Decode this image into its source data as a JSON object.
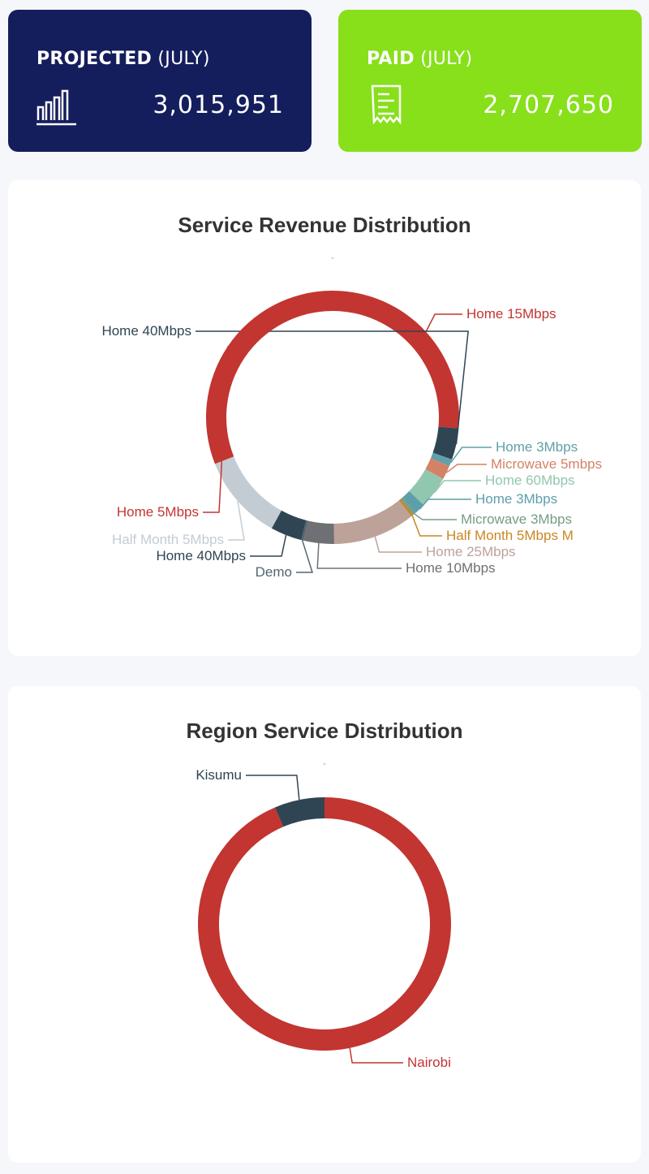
{
  "cards": {
    "projected": {
      "label_bold": "PROJECTED",
      "label_light": "(JULY)",
      "value": "3,015,951",
      "icon": "bar-chart-icon",
      "color": "#151e5c"
    },
    "paid": {
      "label_bold": "PAID",
      "label_light": "(JULY)",
      "value": "2,707,650",
      "icon": "receipt-icon",
      "color": "#87e01a"
    }
  },
  "chart_data": [
    {
      "type": "pie",
      "title": "Service Revenue Distribution",
      "subtitle": "-",
      "slices": [
        {
          "label": "Home 15Mbps",
          "value": 26.4,
          "color": "#c23531"
        },
        {
          "label": "Home 40Mbps",
          "value": 4.0,
          "color": "#2f4554"
        },
        {
          "label": "Home 3Mbps",
          "value": 0.9,
          "color": "#61a0a8"
        },
        {
          "label": "Microwave 5mbps",
          "value": 1.8,
          "color": "#d48265"
        },
        {
          "label": "Home 60Mbps",
          "value": 4.1,
          "color": "#91c7ae"
        },
        {
          "label": "Home 3Mbps",
          "value": 1.4,
          "color": "#5d9eab"
        },
        {
          "label": "Microwave 3Mbps",
          "value": 0.4,
          "color": "#749f83"
        },
        {
          "label": "Half Month 5Mbps M",
          "value": 0.3,
          "color": "#ca8622"
        },
        {
          "label": "Home 25Mbps",
          "value": 10.5,
          "color": "#bda29a"
        },
        {
          "label": "Home 10Mbps",
          "value": 3.9,
          "color": "#6e7074"
        },
        {
          "label": "Demo",
          "value": 0.3,
          "color": "#546570"
        },
        {
          "label": "Home 40Mbps",
          "value": 4.0,
          "color": "#2f4554"
        },
        {
          "label": "Half Month 5Mbps",
          "value": 11.0,
          "color": "#c4ccd3"
        },
        {
          "label": "Home 5Mbps",
          "value": 31.0,
          "color": "#c23531"
        }
      ]
    },
    {
      "type": "pie",
      "title": "Region Service Distribution",
      "subtitle": "-",
      "slices": [
        {
          "label": "Nairobi",
          "value": 93.6,
          "color": "#c23531"
        },
        {
          "label": "Kisumu",
          "value": 6.4,
          "color": "#2f4554"
        }
      ]
    }
  ]
}
